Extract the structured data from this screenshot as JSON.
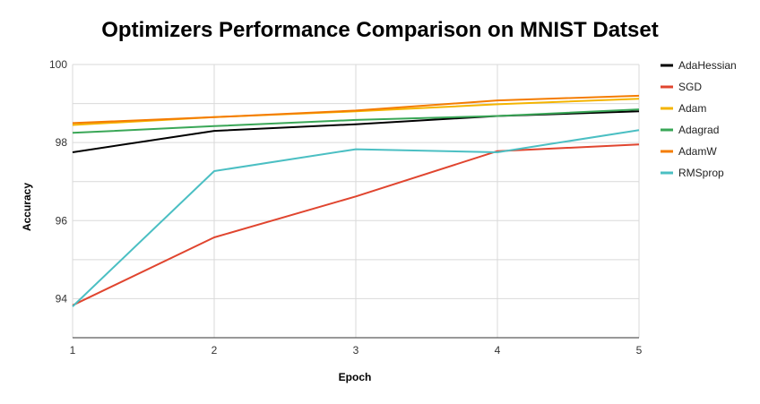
{
  "chart_data": {
    "type": "line",
    "title": "Optimizers Performance Comparison on MNIST Datset",
    "xlabel": "Epoch",
    "ylabel": "Accuracy",
    "x": [
      1,
      2,
      3,
      4,
      5
    ],
    "xlim": [
      1,
      5
    ],
    "ylim": [
      93,
      100
    ],
    "yticks": [
      94,
      96,
      98,
      100
    ],
    "xticks": [
      1,
      2,
      3,
      4,
      5
    ],
    "grid": true,
    "legend_position": "right",
    "series": [
      {
        "name": "AdaHessian",
        "color": "#000000",
        "values": [
          97.75,
          98.3,
          98.47,
          98.68,
          98.8
        ]
      },
      {
        "name": "SGD",
        "color": "#e0452f",
        "values": [
          93.83,
          95.57,
          96.62,
          97.78,
          97.95
        ]
      },
      {
        "name": "Adam",
        "color": "#f4b400",
        "values": [
          98.45,
          98.65,
          98.8,
          98.98,
          99.12
        ]
      },
      {
        "name": "Adagrad",
        "color": "#3aa757",
        "values": [
          98.25,
          98.42,
          98.58,
          98.68,
          98.85
        ]
      },
      {
        "name": "AdamW",
        "color": "#f47c00",
        "values": [
          98.5,
          98.65,
          98.82,
          99.08,
          99.2
        ]
      },
      {
        "name": "RMSprop",
        "color": "#4bbfc3",
        "values": [
          93.8,
          97.27,
          97.83,
          97.75,
          98.32
        ]
      }
    ]
  }
}
